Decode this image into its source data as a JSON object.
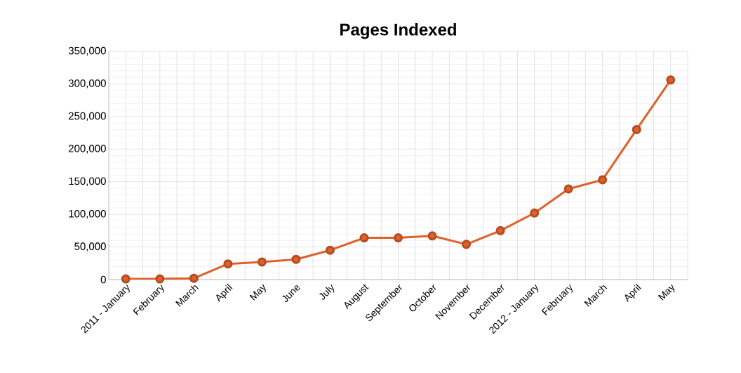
{
  "chart_data": {
    "type": "line",
    "title": "Pages Indexed",
    "categories": [
      "2011 - January",
      "February",
      "March",
      "April",
      "May",
      "June",
      "July",
      "August",
      "September",
      "October",
      "November",
      "December",
      "2012 - January",
      "February",
      "March",
      "April",
      "May"
    ],
    "values": [
      1000,
      1000,
      2000,
      24000,
      27000,
      31000,
      45000,
      64000,
      64000,
      67000,
      54000,
      75000,
      102000,
      139000,
      153000,
      230000,
      306000
    ],
    "color": "#e0602a",
    "marker": "circle",
    "line_style": "solid",
    "ylim": [
      0,
      350000
    ],
    "yticks": [
      {
        "value": 0,
        "label": "0"
      },
      {
        "value": 50000,
        "label": "50,000"
      },
      {
        "value": 100000,
        "label": "100,000"
      },
      {
        "value": 150000,
        "label": "150,000"
      },
      {
        "value": 200000,
        "label": "200,000"
      },
      {
        "value": 250000,
        "label": "250,000"
      },
      {
        "value": 300000,
        "label": "300,000"
      },
      {
        "value": 350000,
        "label": "350,000"
      }
    ],
    "grid": true
  }
}
